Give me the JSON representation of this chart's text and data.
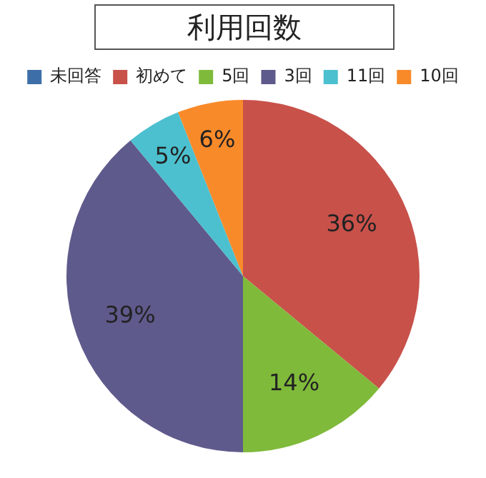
{
  "chart_data": {
    "type": "pie",
    "title": "利用回数",
    "categories": [
      "未回答",
      "初めて",
      "5回",
      "3回",
      "11回",
      "10回"
    ],
    "values": [
      0,
      36,
      14,
      39,
      5,
      6
    ],
    "colors": [
      "#3d6ea8",
      "#c8514a",
      "#7fba3b",
      "#5f5a8c",
      "#4cc0cf",
      "#f98a2a"
    ],
    "value_labels": [
      null,
      "36%",
      "14%",
      "39%",
      "5%",
      "6%"
    ],
    "legend": "top"
  }
}
